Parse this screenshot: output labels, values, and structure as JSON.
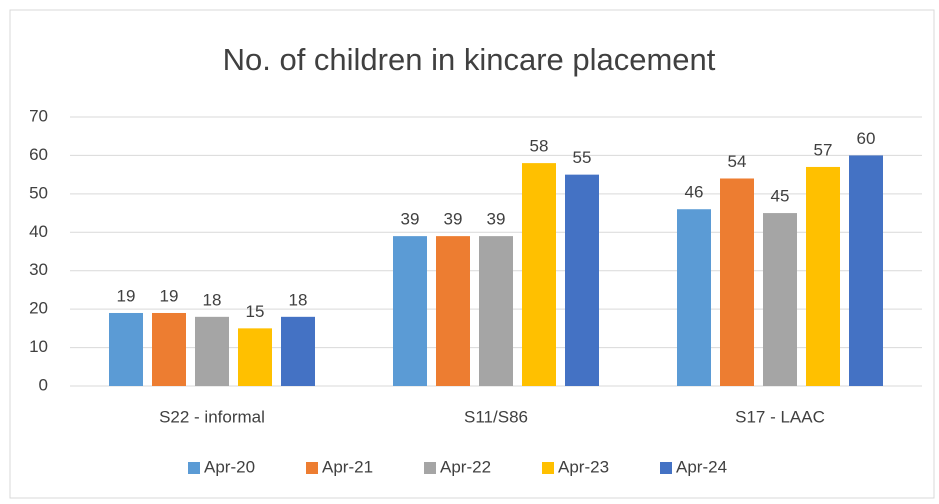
{
  "chart_data": {
    "type": "bar",
    "title": "No. of children in kincare placement",
    "categories": [
      "S22 - informal",
      "S11/S86",
      "S17 - LAAC"
    ],
    "series": [
      {
        "name": "Apr-20",
        "color": "#5b9bd5",
        "values": [
          19,
          39,
          46
        ]
      },
      {
        "name": "Apr-21",
        "color": "#ed7d31",
        "values": [
          19,
          39,
          54
        ]
      },
      {
        "name": "Apr-22",
        "color": "#a5a5a5",
        "values": [
          18,
          39,
          45
        ]
      },
      {
        "name": "Apr-23",
        "color": "#ffc000",
        "values": [
          15,
          58,
          57
        ]
      },
      {
        "name": "Apr-24",
        "color": "#4472c4",
        "values": [
          18,
          55,
          60
        ]
      }
    ],
    "ylim": [
      0,
      70
    ],
    "yticks": [
      0,
      10,
      20,
      30,
      40,
      50,
      60,
      70
    ],
    "grid": true,
    "legend": "bottom"
  }
}
